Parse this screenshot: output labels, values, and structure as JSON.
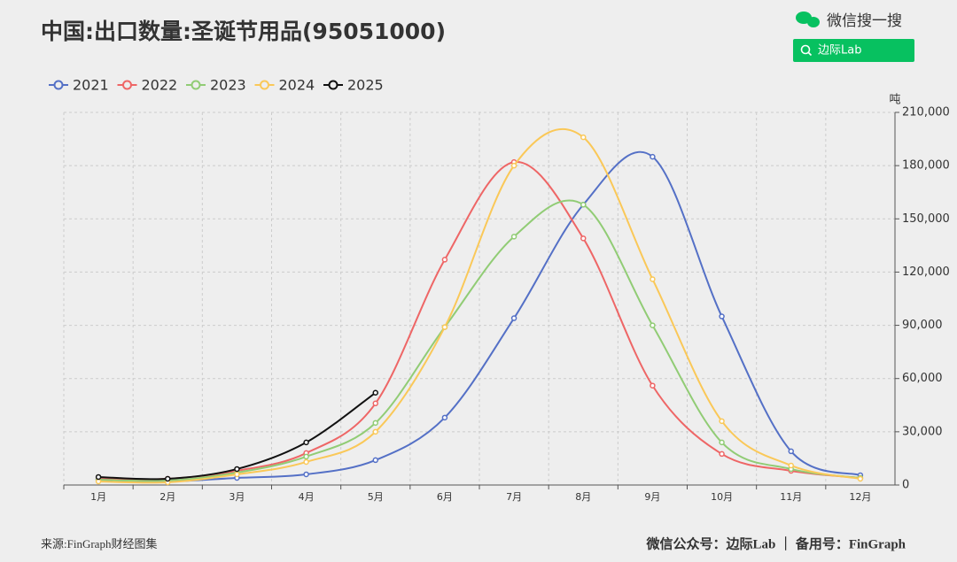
{
  "chart_data": {
    "type": "line",
    "title": "中国:出口数量:圣诞节用品(95051000)",
    "y_axis_label": "吨",
    "source": "来源:FinGraph财经图集",
    "footer": "微信公众号：边际Lab ｜ 备用号：FinGraph",
    "search_label": "微信搜一搜",
    "search_box": "边际Lab",
    "categories": [
      "1月",
      "2月",
      "3月",
      "4月",
      "5月",
      "6月",
      "7月",
      "8月",
      "9月",
      "10月",
      "11月",
      "12月"
    ],
    "series": [
      {
        "name": "2021",
        "color": "#5470c6",
        "values": [
          3000,
          2000,
          4000,
          6000,
          14000,
          38000,
          94000,
          158000,
          185000,
          95000,
          19000,
          5500
        ]
      },
      {
        "name": "2022",
        "color": "#ee6666",
        "values": [
          3500,
          3500,
          8000,
          18000,
          46000,
          127000,
          182000,
          139000,
          56000,
          17500,
          8000,
          4000
        ]
      },
      {
        "name": "2023",
        "color": "#91cc75",
        "values": [
          3000,
          2500,
          7000,
          16000,
          35000,
          89000,
          140000,
          158000,
          90000,
          24000,
          9000,
          4000
        ]
      },
      {
        "name": "2024",
        "color": "#fac858",
        "values": [
          2000,
          1500,
          6000,
          13000,
          30000,
          89000,
          180000,
          196000,
          116000,
          36000,
          11000,
          3500
        ]
      },
      {
        "name": "2025",
        "color": "#111111",
        "values": [
          4500,
          3500,
          9000,
          24000,
          52000,
          null,
          null,
          null,
          null,
          null,
          null,
          null
        ]
      }
    ],
    "ylim": [
      0,
      210000
    ],
    "yticks": [
      0,
      {
        "value": 30000,
        "label": "30,000"
      },
      {
        "value": 60000,
        "label": "60,000"
      },
      {
        "value": 90000,
        "label": "90,000"
      },
      {
        "value": 120000,
        "label": "120,000"
      },
      {
        "value": 150000,
        "label": "150,000"
      },
      {
        "value": 180000,
        "label": "180,000"
      },
      {
        "value": 210000,
        "label": "210,000"
      }
    ],
    "grid": true,
    "legend": "top-left"
  }
}
